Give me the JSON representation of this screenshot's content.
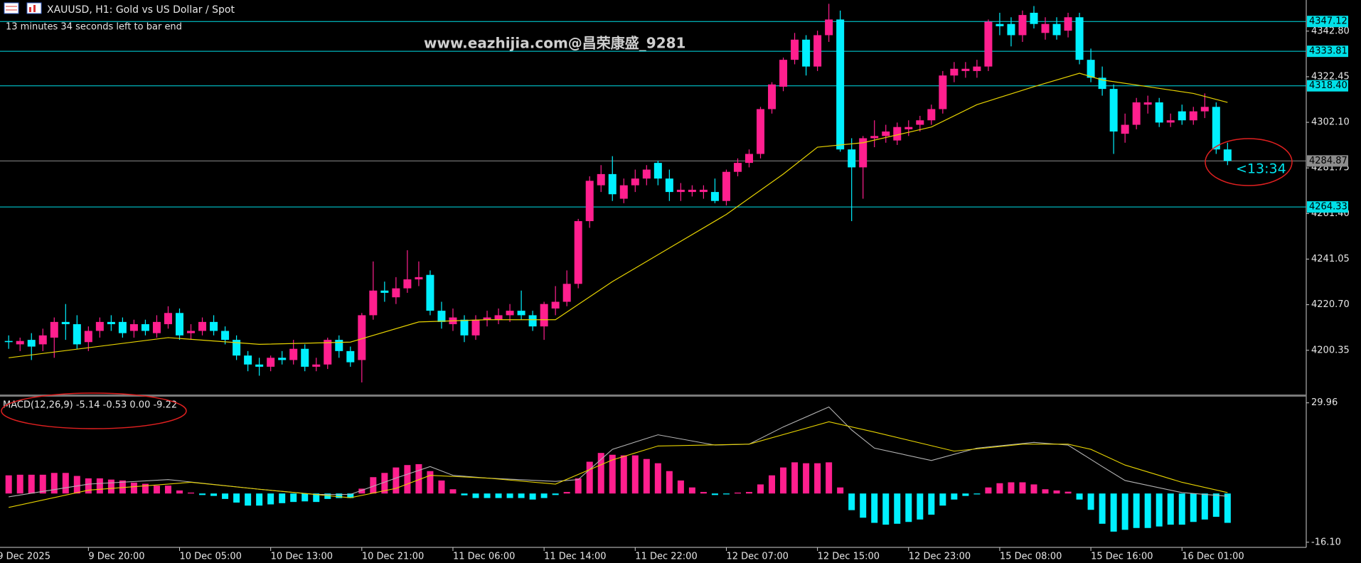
{
  "chart_data": [
    {
      "type": "candlestick",
      "title": "XAUUSD, H1:  Gold vs US Dollar / Spot",
      "subtitle": "13 minutes 34 seconds left to bar end",
      "watermark": "www.eazhijia.com@昌荣康盛_9281",
      "countdown": "<13:34",
      "up_color": "#ff1f8e",
      "down_color": "#00f0ff",
      "open": [
        4204.5,
        4203,
        4205,
        4203,
        4206,
        4213,
        4212,
        4204,
        4209,
        4213,
        4213,
        4209,
        4212,
        4208,
        4212,
        4217,
        4208,
        4209,
        4213,
        4209,
        4205,
        4198,
        4194,
        4193,
        4197,
        4196,
        4201,
        4193,
        4194,
        4205,
        4200,
        4196,
        4216,
        4227,
        4224,
        4228,
        4232,
        4234,
        4218,
        4212,
        4214,
        4207,
        4214,
        4214,
        4216,
        4218,
        4216,
        4211,
        4219,
        4222,
        4230,
        4258,
        4274,
        4279,
        4268,
        4274,
        4277,
        4284,
        4277,
        4271,
        4271,
        4271,
        4271,
        4267,
        4280,
        4284,
        4288,
        4308,
        4318,
        4330,
        4339,
        4327,
        4341,
        4348,
        4290,
        4282,
        4295,
        4296,
        4294,
        4299,
        4301,
        4303,
        4308,
        4323,
        4325,
        4325,
        4327,
        4346,
        4346,
        4341,
        4351,
        4342,
        4346,
        4343,
        4349,
        4330,
        4322,
        4317,
        4297,
        4301,
        4310,
        4311,
        4302,
        4307,
        4303,
        4307,
        4309,
        4290
      ],
      "high": [
        4207,
        4206,
        4208,
        4210,
        4215,
        4221,
        4216,
        4211,
        4215,
        4216,
        4215,
        4214,
        4214,
        4216,
        4220,
        4219,
        4212,
        4215,
        4216,
        4211,
        4207,
        4200,
        4197,
        4198,
        4200,
        4205,
        4203,
        4197,
        4206,
        4207,
        4202,
        4217,
        4240,
        4231,
        4233,
        4245,
        4240,
        4236,
        4222,
        4219,
        4216,
        4216,
        4218,
        4219,
        4221,
        4227,
        4218,
        4222,
        4229,
        4236,
        4259,
        4278,
        4283,
        4287,
        4277,
        4281,
        4283,
        4285,
        4281,
        4275,
        4274,
        4274,
        4277,
        4281,
        4286,
        4290,
        4309,
        4320,
        4331,
        4342,
        4341,
        4343,
        4355,
        4352,
        4295,
        4296,
        4303,
        4301,
        4302,
        4303,
        4305,
        4310,
        4325,
        4329,
        4329,
        4330,
        4348,
        4351,
        4349,
        4352,
        4354,
        4349,
        4349,
        4351,
        4351,
        4335,
        4327,
        4319,
        4306,
        4313,
        4314,
        4313,
        4306,
        4310,
        4309,
        4315,
        4311,
        4293
      ],
      "low": [
        4201,
        4200,
        4196,
        4200,
        4197,
        4205,
        4201,
        4200,
        4206,
        4209,
        4206,
        4206,
        4207,
        4206,
        4210,
        4205,
        4205,
        4207,
        4207,
        4203,
        4196,
        4191,
        4189,
        4191,
        4194,
        4194,
        4191,
        4191,
        4192,
        4197,
        4193,
        4186,
        4214,
        4222,
        4221,
        4226,
        4229,
        4216,
        4210,
        4209,
        4204,
        4205,
        4211,
        4212,
        4213,
        4214,
        4209,
        4205,
        4216,
        4220,
        4228,
        4255,
        4271,
        4267,
        4266,
        4271,
        4274,
        4274,
        4267,
        4267,
        4269,
        4268,
        4266,
        4265,
        4278,
        4282,
        4286,
        4306,
        4316,
        4328,
        4323,
        4325,
        4338,
        4289,
        4258,
        4268,
        4291,
        4293,
        4292,
        4296,
        4298,
        4301,
        4306,
        4320,
        4322,
        4322,
        4325,
        4341,
        4336,
        4338,
        4344,
        4339,
        4339,
        4340,
        4328,
        4320,
        4314,
        4288,
        4293,
        4299,
        4306,
        4300,
        4300,
        4301,
        4301,
        4304,
        4288,
        4283
      ],
      "close": [
        4204,
        4204.5,
        4202,
        4207,
        4213,
        4212,
        4203,
        4209,
        4213,
        4212,
        4208,
        4212,
        4209,
        4213,
        4217,
        4207,
        4209,
        4213,
        4209,
        4205,
        4198,
        4194,
        4193,
        4197,
        4196,
        4201,
        4193,
        4194,
        4205,
        4200,
        4195,
        4216,
        4227,
        4226,
        4228,
        4232,
        4233,
        4218,
        4213,
        4215,
        4207,
        4214,
        4215,
        4216,
        4218,
        4216,
        4211,
        4221,
        4222,
        4230,
        4258,
        4276,
        4279,
        4270,
        4274,
        4277,
        4281,
        4277,
        4271,
        4272,
        4272,
        4272,
        4267,
        4280,
        4284,
        4288,
        4308,
        4319,
        4330,
        4339,
        4327,
        4341,
        4348,
        4290,
        4282,
        4295,
        4296,
        4298,
        4300,
        4300,
        4303,
        4308,
        4323,
        4326,
        4326,
        4327,
        4347,
        4345,
        4341,
        4350,
        4346,
        4346,
        4341,
        4349,
        4330,
        4322,
        4317,
        4298,
        4301,
        4311,
        4311,
        4302,
        4303,
        4303,
        4307,
        4309,
        4290,
        4284.87
      ],
      "ma": {
        "color": "#e6d200",
        "x": [
          0,
          14,
          22,
          30,
          36,
          42,
          48,
          53,
          58,
          63,
          68,
          71,
          75,
          81,
          85,
          90,
          94,
          96,
          100,
          104,
          107
        ],
        "values": [
          4197,
          4206,
          4203,
          4204,
          4213,
          4214,
          4214,
          4231,
          4246,
          4261,
          4279,
          4291,
          4293,
          4300,
          4310,
          4318,
          4324,
          4321,
          4318,
          4315,
          4311
        ]
      },
      "levels": [
        {
          "value": 4347.12,
          "label": "4347.12",
          "color": "#00e0e8"
        },
        {
          "value": 4333.81,
          "label": "4333.81",
          "color": "#00e0e8"
        },
        {
          "value": 4318.4,
          "label": "4318.40",
          "color": "#00e0e8"
        },
        {
          "value": 4284.87,
          "label": "4284.87",
          "color": "#8c8c8c"
        },
        {
          "value": 4264.33,
          "label": "4264.33",
          "color": "#00e0e8"
        }
      ],
      "ylim": [
        4180.6,
        4356.7
      ],
      "yticks": [
        4200.35,
        {
          "value": 4220.7,
          "label": "4220.70"
        },
        4241.05,
        {
          "value": 4261.4,
          "label": "4261.40"
        },
        4281.75,
        {
          "value": 4302.1,
          "label": "4302.10"
        },
        4322.45,
        {
          "value": 4342.8,
          "label": "4342.80"
        }
      ]
    },
    {
      "type": "macd",
      "title": "MACD(12,26,9) -5.14 -0.53 0.00 -9.22",
      "up_color": "#ff1f8e",
      "down_color": "#00f0ff",
      "values": [
        6.0,
        6.2,
        6.2,
        6.2,
        6.8,
        6.8,
        5.8,
        5.0,
        5.0,
        4.6,
        4.3,
        3.6,
        3.2,
        2.6,
        2.6,
        1.0,
        0.3,
        -0.5,
        -0.8,
        -1.8,
        -3.0,
        -4.0,
        -4.0,
        -3.6,
        -3.2,
        -2.8,
        -2.6,
        -2.8,
        -1.8,
        -1.5,
        -1.5,
        1.6,
        5.4,
        6.8,
        8.6,
        9.4,
        9.7,
        7.4,
        4.3,
        1.4,
        -0.6,
        -1.5,
        -1.5,
        -1.5,
        -1.5,
        -1.5,
        -2.0,
        -1.5,
        -0.5,
        0.5,
        5.0,
        10.5,
        13.4,
        12.8,
        12.6,
        12.6,
        11.4,
        10.0,
        7.4,
        4.3,
        2.0,
        0.5,
        -0.5,
        -0.3,
        0.3,
        0.5,
        3.0,
        6.0,
        8.6,
        10.3,
        10.0,
        10.0,
        10.3,
        2.0,
        -5.5,
        -8.0,
        -9.7,
        -10.3,
        -10.0,
        -9.4,
        -8.6,
        -7.0,
        -4.0,
        -2.0,
        -0.8,
        -0.3,
        2.0,
        3.4,
        3.7,
        3.7,
        3.0,
        1.4,
        1.0,
        0.6,
        -2.0,
        -5.4,
        -10.0,
        -12.6,
        -12.0,
        -11.4,
        -11.4,
        -10.9,
        -10.3,
        -10.3,
        -9.4,
        -8.6,
        -7.7,
        -9.7
      ],
      "series": [
        {
          "color": "#b4b4b4",
          "x": [
            0,
            7,
            14,
            22,
            27,
            30,
            34,
            37,
            39,
            42,
            48,
            50,
            53,
            57,
            62,
            65,
            68,
            72,
            74,
            76,
            81,
            85,
            90,
            93,
            96,
            98,
            103,
            107
          ],
          "values": [
            -1.1,
            3.1,
            4.6,
            1.4,
            -0.3,
            -0.3,
            5.1,
            8.9,
            6,
            5.1,
            4,
            4.6,
            14.6,
            19.4,
            16,
            16.3,
            22,
            28.6,
            21,
            15,
            10.9,
            15,
            16.9,
            16,
            8.9,
            4.3,
            0.3,
            -0.9
          ]
        },
        {
          "color": "#e6d200",
          "x": [
            0,
            7,
            16,
            22,
            30,
            34,
            37,
            42,
            48,
            53,
            57,
            65,
            72,
            76,
            83,
            89,
            93,
            95,
            98,
            103,
            107
          ],
          "values": [
            -4.6,
            1.1,
            3.7,
            1.4,
            -1.4,
            1.7,
            6,
            5.1,
            3.1,
            11.1,
            15.7,
            16.3,
            23.7,
            20.3,
            14,
            16.3,
            16.3,
            14.6,
            9.4,
            3.7,
            0.3
          ]
        }
      ],
      "ylim": [
        -17.8,
        32
      ],
      "yticks": [
        29.96,
        {
          "value": -16.1,
          "label": "-16.10"
        }
      ],
      "xticks": [
        {
          "value": -1,
          "label": "9 Dec 2025"
        },
        {
          "value": 7,
          "label": "9 Dec 20:00"
        },
        {
          "value": 15,
          "label": "10 Dec 05:00"
        },
        {
          "value": 23,
          "label": "10 Dec 13:00"
        },
        {
          "value": 31,
          "label": "10 Dec 21:00"
        },
        {
          "value": 39,
          "label": "11 Dec 06:00"
        },
        {
          "value": 47,
          "label": "11 Dec 14:00"
        },
        {
          "value": 55,
          "label": "11 Dec 22:00"
        },
        {
          "value": 63,
          "label": "12 Dec 07:00"
        },
        {
          "value": 71,
          "label": "12 Dec 15:00"
        },
        {
          "value": 79,
          "label": "12 Dec 23:00"
        },
        {
          "value": 87,
          "label": "15 Dec 08:00"
        },
        {
          "value": 95,
          "label": "15 Dec 16:00"
        },
        {
          "value": 103,
          "label": "16 Dec 01:00"
        }
      ]
    }
  ]
}
